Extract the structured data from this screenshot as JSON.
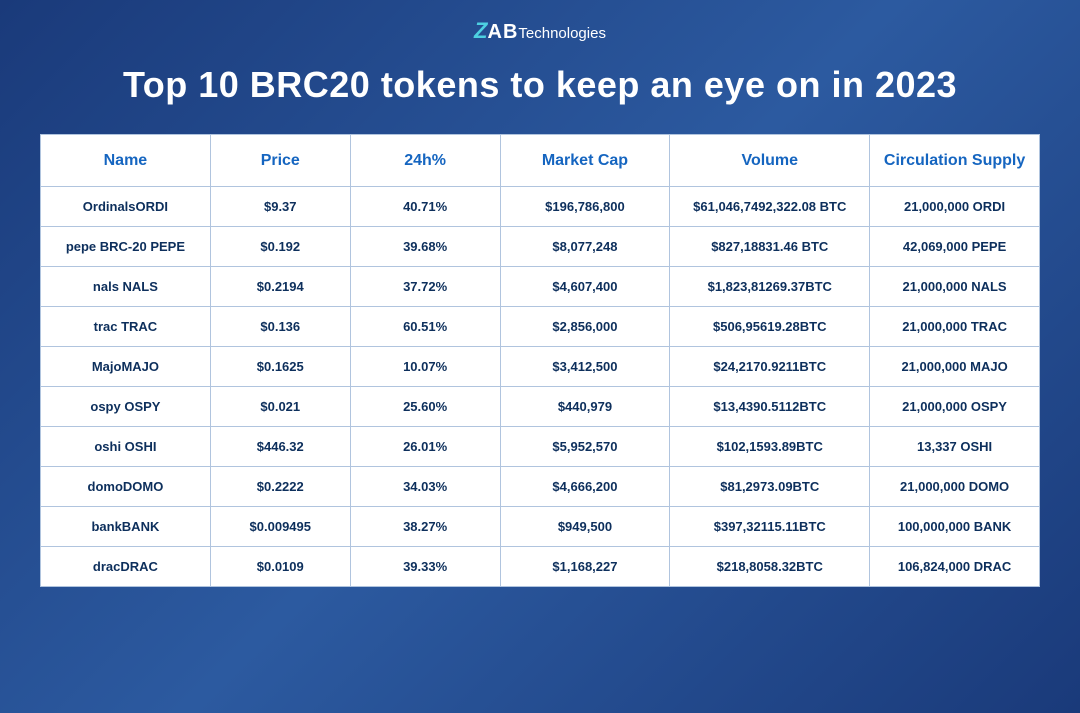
{
  "logo": {
    "z": "Z",
    "ab": "AB",
    "tech": "Technologies"
  },
  "title": "Top 10 BRC20 tokens to keep an eye on in 2023",
  "table": {
    "type": "table",
    "columns": [
      "Name",
      "Price",
      "24h%",
      "Market Cap",
      "Volume",
      "Circulation Supply"
    ],
    "column_widths_pct": [
      17,
      14,
      15,
      17,
      20,
      17
    ],
    "header_color": "#1565c0",
    "header_bg": "#ffffff",
    "cell_color": "#0d2f5c",
    "cell_bg": "#ffffff",
    "border_color": "#b0c4de",
    "header_fontsize": 16,
    "cell_fontsize": 13,
    "rows": [
      [
        "OrdinalsORDI",
        "$9.37",
        "40.71%",
        "$196,786,800",
        "$61,046,7492,322.08 BTC",
        "21,000,000 ORDI"
      ],
      [
        "pepe BRC-20 PEPE",
        "$0.192",
        "39.68%",
        "$8,077,248",
        "$827,18831.46 BTC",
        "42,069,000 PEPE"
      ],
      [
        "nals NALS",
        "$0.2194",
        "37.72%",
        "$4,607,400",
        "$1,823,81269.37BTC",
        "21,000,000 NALS"
      ],
      [
        "trac TRAC",
        "$0.136",
        "60.51%",
        "$2,856,000",
        "$506,95619.28BTC",
        "21,000,000 TRAC"
      ],
      [
        "MajoMAJO",
        "$0.1625",
        "10.07%",
        "$3,412,500",
        "$24,2170.9211BTC",
        "21,000,000 MAJO"
      ],
      [
        "ospy OSPY",
        "$0.021",
        "25.60%",
        "$440,979",
        "$13,4390.5112BTC",
        "21,000,000 OSPY"
      ],
      [
        "oshi OSHI",
        "$446.32",
        "26.01%",
        "$5,952,570",
        "$102,1593.89BTC",
        "13,337 OSHI"
      ],
      [
        "domoDOMO",
        "$0.2222",
        "34.03%",
        "$4,666,200",
        "$81,2973.09BTC",
        "21,000,000 DOMO"
      ],
      [
        "bankBANK",
        "$0.009495",
        "38.27%",
        "$949,500",
        "$397,32115.11BTC",
        "100,000,000 BANK"
      ],
      [
        "dracDRAC",
        "$0.0109",
        "39.33%",
        "$1,168,227",
        "$218,8058.32BTC",
        "106,824,000 DRAC"
      ]
    ]
  },
  "styles": {
    "bg_gradient_from": "#1a3a7a",
    "bg_gradient_mid": "#2c5aa0",
    "bg_gradient_to": "#1a3a7a",
    "title_color": "#ffffff",
    "title_fontsize": 36,
    "logo_accent": "#4dd0e1"
  }
}
